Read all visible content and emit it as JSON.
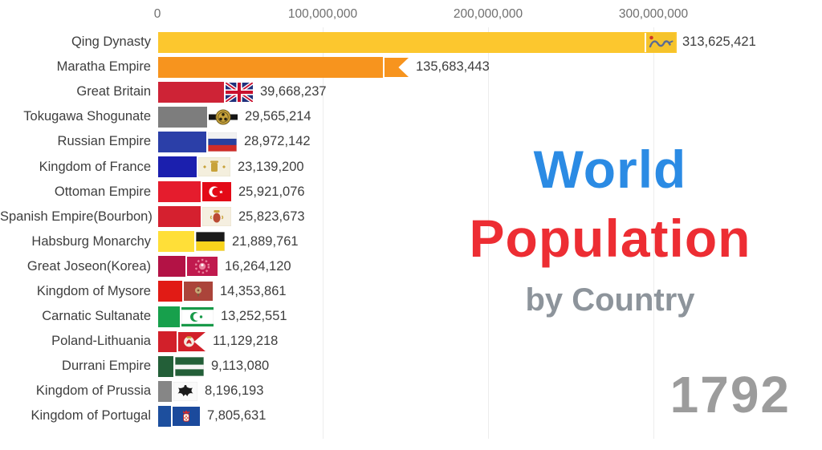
{
  "overlay": {
    "title_line1": "World",
    "title_line2": "Population",
    "subtitle": "by Country",
    "year": "1792",
    "colors": {
      "line1": "#2b8be4",
      "line2": "#ed2d33",
      "subtitle": "#8d949b",
      "year": "#9c9c9c"
    }
  },
  "chart_data": {
    "type": "bar",
    "orientation": "horizontal",
    "title": "World Population by Country",
    "year_shown": "1792",
    "x_axis": {
      "tick_labels": [
        "0",
        "100,000,000",
        "200,000,000",
        "300,000,000"
      ],
      "tick_values": [
        0,
        100000000,
        200000000,
        300000000
      ],
      "max": 330000000,
      "grid": true
    },
    "bars": [
      {
        "label": "Qing Dynasty",
        "value": 313625421,
        "display": "313,625,421",
        "color": "#fcc72e",
        "flag": {
          "kind": "dragon",
          "bg": "#f5c32b",
          "overlap": true
        }
      },
      {
        "label": "Maratha Empire",
        "value": 135683443,
        "display": "135,683,443",
        "color": "#f7941e",
        "flag": {
          "kind": "swallowtail",
          "bg": "#f7941e"
        }
      },
      {
        "label": "Great Britain",
        "value": 39668237,
        "display": "39,668,237",
        "color": "#ce2336",
        "flag": {
          "kind": "union-jack",
          "bg": "#20317c",
          "accent": "#c8102e"
        }
      },
      {
        "label": "Tokugawa Shogunate",
        "value": 29565214,
        "display": "29,565,214",
        "color": "#7d7d7d",
        "flag": {
          "kind": "tokugawa",
          "bg": "#151515",
          "accent": "#c9a43c"
        }
      },
      {
        "label": "Russian Empire",
        "value": 28972142,
        "display": "28,972,142",
        "color": "#2b3fa8",
        "flag": {
          "kind": "hstripes",
          "colors": [
            "#f2f2f2",
            "#28409e",
            "#d02c27"
          ],
          "heights": [
            33,
            33,
            34
          ]
        }
      },
      {
        "label": "Kingdom of France",
        "value": 23139200,
        "display": "23,139,200",
        "color": "#1b1fae",
        "flag": {
          "kind": "royal-france",
          "bg": "#f4efdd",
          "accent": "#c8a23a"
        }
      },
      {
        "label": "Ottoman Empire",
        "value": 25921076,
        "display": "25,921,076",
        "color": "#e51c2d",
        "flag": {
          "kind": "crescent",
          "bg": "#e30a17",
          "fg": "#ffffff"
        }
      },
      {
        "label": "Spanish Empire(Bourbon)",
        "value": 25823673,
        "display": "25,823,673",
        "color": "#d5202f",
        "flag": {
          "kind": "arms-spain",
          "bg": "#f5efe0",
          "accent": "#bb4a33",
          "gold": "#c8a23a"
        }
      },
      {
        "label": "Habsburg Monarchy",
        "value": 21889761,
        "display": "21,889,761",
        "color": "#ffdf38",
        "flag": {
          "kind": "hstripes",
          "colors": [
            "#1a1a1a",
            "#f8d31c"
          ],
          "heights": [
            50,
            50
          ]
        }
      },
      {
        "label": "Great Joseon(Korea)",
        "value": 16264120,
        "display": "16,264,120",
        "color": "#b31245",
        "flag": {
          "kind": "joseon",
          "bg": "#c01a4e",
          "fg": "#e8819c"
        }
      },
      {
        "label": "Kingdom of Mysore",
        "value": 14353861,
        "display": "14,353,861",
        "color": "#e11b15",
        "flag": {
          "kind": "mysore",
          "bg": "#ab443a",
          "accent": "#c9b27c"
        }
      },
      {
        "label": "Carnatic Sultanate",
        "value": 13252551,
        "display": "13,252,551",
        "color": "#17a04c",
        "flag": {
          "kind": "carnatic",
          "bg": "#ffffff",
          "fg": "#189a49"
        }
      },
      {
        "label": "Poland-Lithuania",
        "value": 11129218,
        "display": "11,129,218",
        "color": "#d2202a",
        "flag": {
          "kind": "poland",
          "bg": "#d2202a",
          "fg": "#f3e9df",
          "gold": "#c8a23a"
        }
      },
      {
        "label": "Durrani Empire",
        "value": 9113080,
        "display": "9,113,080",
        "color": "#235f38",
        "flag": {
          "kind": "hstripes",
          "colors": [
            "#235f38",
            "#f5f5f5",
            "#235f38"
          ],
          "heights": [
            40,
            24,
            36
          ]
        }
      },
      {
        "label": "Kingdom of Prussia",
        "value": 8196193,
        "display": "8,196,193",
        "color": "#868686",
        "flag": {
          "kind": "eagle",
          "bg": "#fafafa",
          "fg": "#1b1b1b"
        }
      },
      {
        "label": "Kingdom of Portugal",
        "value": 7805631,
        "display": "7,805,631",
        "color": "#1d4f9e",
        "flag": {
          "kind": "portugal",
          "bg": "#1b4a9c",
          "accent": "#d02a2a",
          "fg": "#f5f0e0"
        }
      }
    ]
  }
}
